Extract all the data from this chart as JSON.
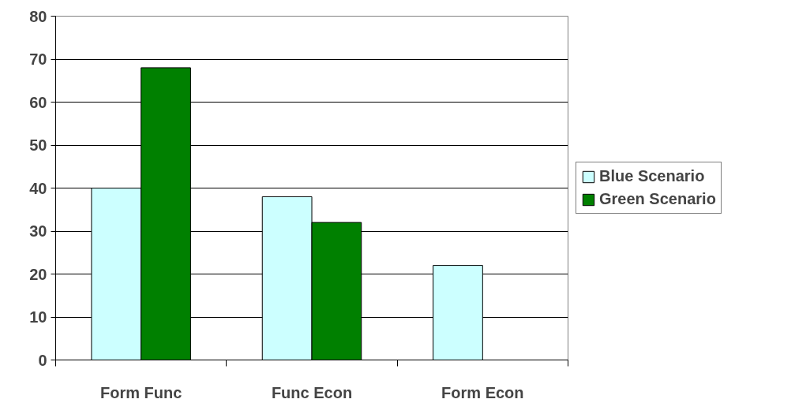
{
  "chart_data": {
    "type": "bar",
    "categories": [
      "Form Func",
      "Func Econ",
      "Form Econ"
    ],
    "series": [
      {
        "name": "Blue Scenario",
        "color": "#ccffff",
        "values": [
          40,
          38,
          22
        ]
      },
      {
        "name": "Green Scenario",
        "color": "#008000",
        "values": [
          68,
          32,
          null
        ]
      }
    ],
    "ylim": [
      0,
      80
    ],
    "yticks": [
      0,
      10,
      20,
      30,
      40,
      50,
      60,
      70,
      80
    ],
    "grid": "y",
    "legend": "right"
  }
}
